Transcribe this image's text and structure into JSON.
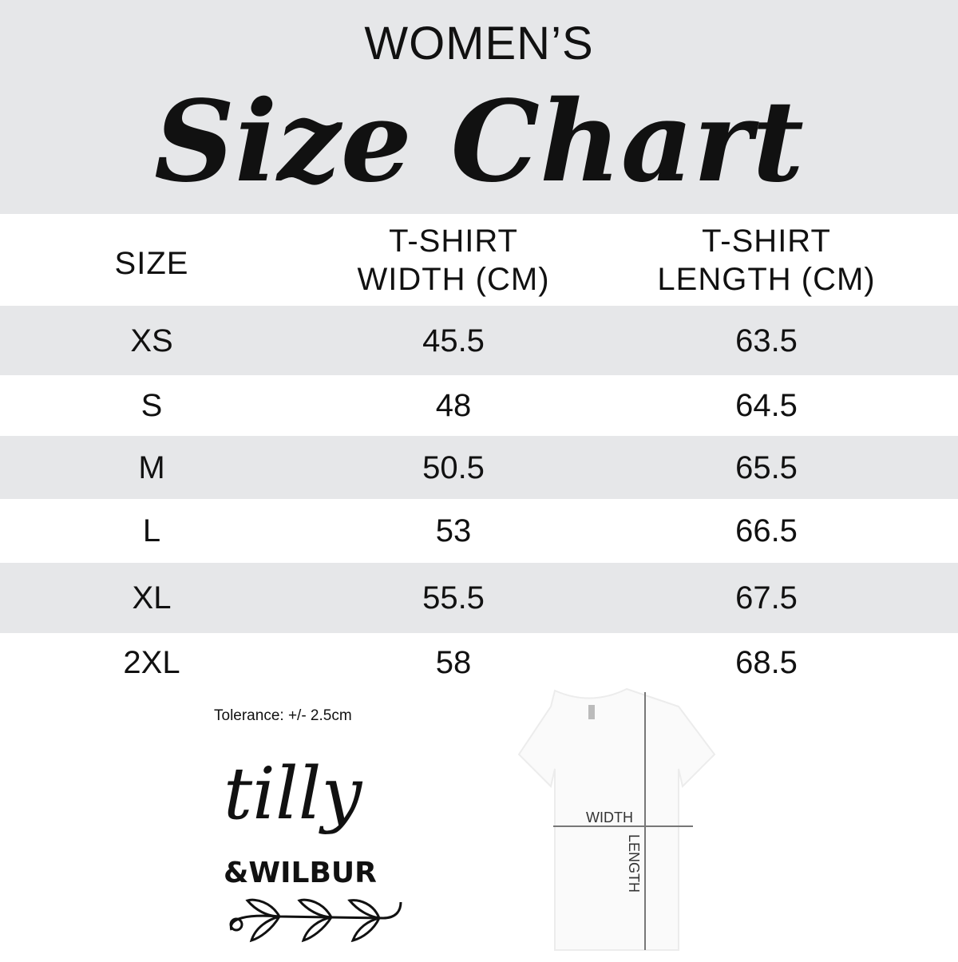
{
  "header": {
    "subtitle": "WOMEN’S",
    "title": "Size Chart"
  },
  "table": {
    "columns": [
      {
        "line1": "SIZE",
        "line2": ""
      },
      {
        "line1": "T-SHIRT",
        "line2": "WIDTH (CM)"
      },
      {
        "line1": "T-SHIRT",
        "line2": "LENGTH (CM)"
      }
    ],
    "rows": [
      {
        "size": "XS",
        "width": "45.5",
        "length": "63.5"
      },
      {
        "size": "S",
        "width": "48",
        "length": "64.5"
      },
      {
        "size": "M",
        "width": "50.5",
        "length": "65.5"
      },
      {
        "size": "L",
        "width": "53",
        "length": "66.5"
      },
      {
        "size": "XL",
        "width": "55.5",
        "length": "67.5"
      },
      {
        "size": "2XL",
        "width": "58",
        "length": "68.5"
      }
    ]
  },
  "tolerance": "Tolerance: +/- 2.5cm",
  "logo": {
    "line1": "tilly",
    "line2": "&WILBUR"
  },
  "diagram": {
    "width_label": "WIDTH",
    "length_label": "LENGTH"
  },
  "colors": {
    "band": "#e6e7e9",
    "text": "#111111"
  }
}
